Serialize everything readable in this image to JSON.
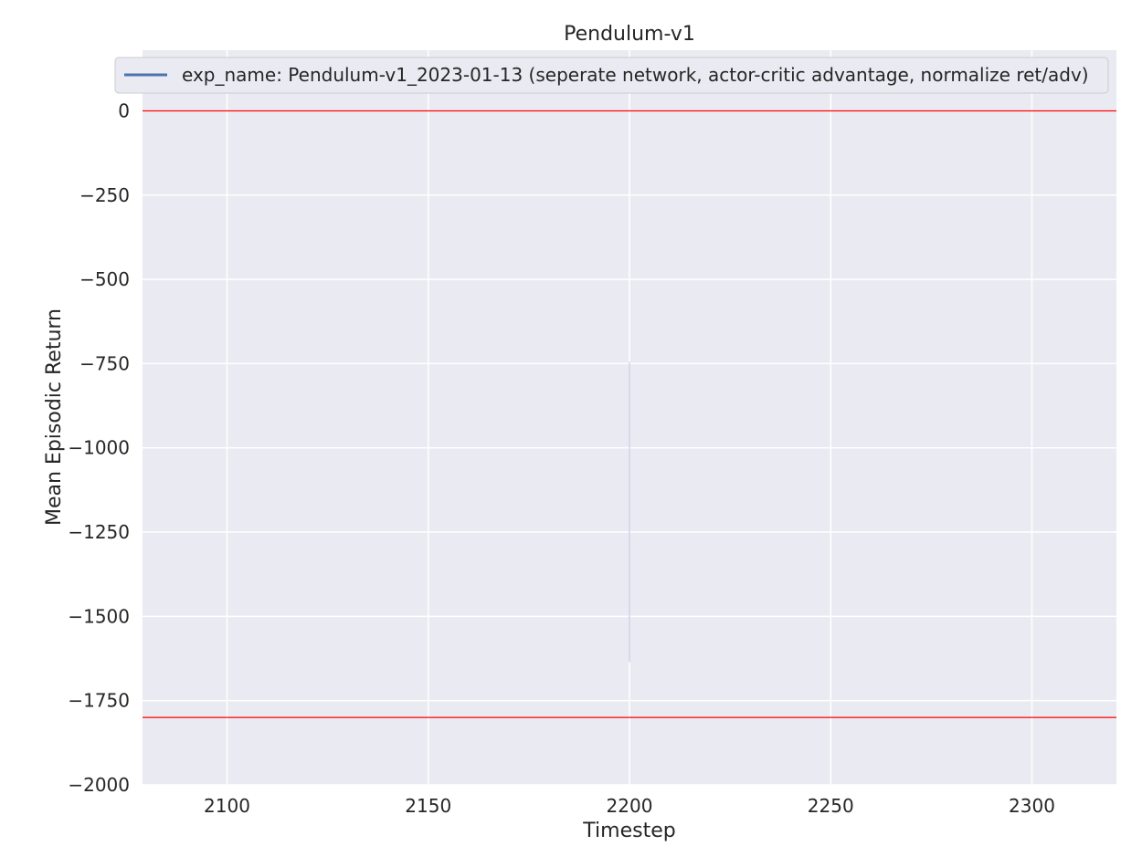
{
  "chart_data": {
    "type": "line",
    "title": "Pendulum-v1",
    "xlabel": "Timestep",
    "ylabel": "Mean Episodic Return",
    "xlim": [
      2079,
      2321
    ],
    "ylim": [
      -2000,
      180
    ],
    "x_ticks": [
      2100,
      2150,
      2200,
      2250,
      2300
    ],
    "y_ticks": [
      0,
      -250,
      -500,
      -750,
      -1000,
      -1250,
      -1500,
      -1750,
      -2000
    ],
    "x_tick_labels": [
      "2100",
      "2150",
      "2200",
      "2250",
      "2300"
    ],
    "y_tick_labels": [
      "0",
      "−250",
      "−500",
      "−750",
      "−1000",
      "−1250",
      "−1500",
      "−1750",
      "−2000"
    ],
    "grid": true,
    "legend_position": "top",
    "series": [
      {
        "name": "exp_name: Pendulum-v1_2023-01-13 (seperate network, actor-critic advantage, normalize ret/adv)",
        "color": "#4c72b0",
        "x": [
          2200
        ],
        "y": [
          -1190
        ],
        "band_low": [
          -1635
        ],
        "band_high": [
          -745
        ]
      }
    ],
    "reference_lines": [
      {
        "y": 0,
        "color": "#ff0000"
      },
      {
        "y": -1800,
        "color": "#ff0000"
      }
    ],
    "background_color": "#eaeaf2",
    "grid_color": "#ffffff"
  }
}
